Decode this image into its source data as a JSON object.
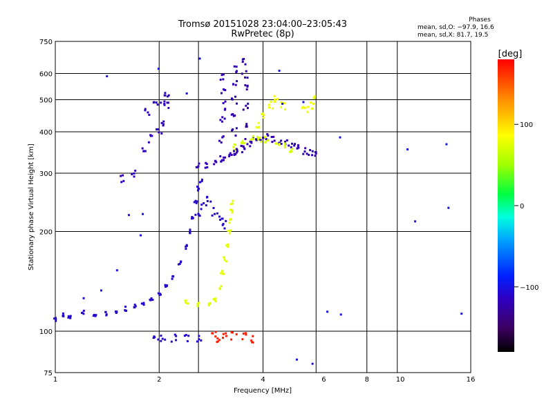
{
  "title": {
    "line1": "Tromsø 20151028 23:04:00–23:05:43",
    "line2": "RwPretec (8p)"
  },
  "phase_box": {
    "heading": "Phases",
    "line_o": "mean, sd,O: −97.9, 16.6",
    "line_x": "mean, sd,X:  81.7, 19.5"
  },
  "colorbar": {
    "unit_label": "[deg]",
    "min": -180,
    "max": 180,
    "ticks": [
      {
        "value": 100,
        "label": "100"
      },
      {
        "value": 0,
        "label": "0"
      },
      {
        "value": -100,
        "label": "−100"
      }
    ]
  },
  "chart_data": {
    "type": "scatter",
    "xlabel": "Frequency [MHz]",
    "ylabel": "Stationary phase Virtual Height [km]",
    "xscale": "log",
    "yscale": "log",
    "xlim": [
      1,
      16
    ],
    "ylim": [
      75,
      750
    ],
    "xticks": [
      {
        "value": 1,
        "label": "1"
      },
      {
        "value": 2,
        "label": "2"
      },
      {
        "value": 4,
        "label": "4"
      },
      {
        "value": 6,
        "label": "6"
      },
      {
        "value": 8,
        "label": "8"
      },
      {
        "value": 10,
        "label": "10"
      },
      {
        "value": 16,
        "label": "16"
      }
    ],
    "xgrid": [
      2,
      2.6,
      4,
      5.7,
      8,
      9.8
    ],
    "yticks": [
      {
        "value": 75,
        "label": "75"
      },
      {
        "value": 100,
        "label": "100"
      },
      {
        "value": 200,
        "label": "200"
      },
      {
        "value": 300,
        "label": "300"
      },
      {
        "value": 400,
        "label": "400"
      },
      {
        "value": 500,
        "label": "500"
      },
      {
        "value": 600,
        "label": "600"
      },
      {
        "value": 750,
        "label": "750"
      }
    ],
    "grid": true,
    "color_by": "phase [deg]",
    "traces": [
      {
        "name": "E-layer O",
        "phase": -110,
        "spread": 0.01,
        "points": [
          [
            1.0,
            108
          ],
          [
            1.05,
            112
          ],
          [
            1.1,
            110
          ],
          [
            1.2,
            114
          ],
          [
            1.3,
            112
          ],
          [
            1.4,
            113
          ],
          [
            1.5,
            115
          ],
          [
            1.6,
            117
          ],
          [
            1.7,
            119
          ],
          [
            1.8,
            121
          ],
          [
            1.9,
            124
          ],
          [
            2.0,
            129
          ],
          [
            2.1,
            136
          ],
          [
            2.2,
            145
          ],
          [
            2.3,
            160
          ],
          [
            2.4,
            180
          ],
          [
            2.45,
            200
          ],
          [
            2.5,
            220
          ],
          [
            2.55,
            245
          ],
          [
            2.6,
            270
          ],
          [
            2.65,
            285
          ]
        ]
      },
      {
        "name": "E-layer X",
        "phase": 75,
        "spread": 0.01,
        "points": [
          [
            2.4,
            122
          ],
          [
            2.6,
            120
          ],
          [
            2.8,
            121
          ],
          [
            2.9,
            125
          ],
          [
            3.0,
            135
          ],
          [
            3.05,
            150
          ],
          [
            3.1,
            165
          ],
          [
            3.15,
            180
          ],
          [
            3.2,
            200
          ],
          [
            3.22,
            215
          ],
          [
            3.24,
            230
          ],
          [
            3.25,
            245
          ]
        ]
      },
      {
        "name": "F-layer O",
        "phase": -120,
        "spread": 0.015,
        "points": [
          [
            2.6,
            315
          ],
          [
            2.75,
            318
          ],
          [
            2.9,
            325
          ],
          [
            3.05,
            330
          ],
          [
            3.2,
            338
          ],
          [
            3.35,
            346
          ],
          [
            3.5,
            355
          ],
          [
            3.65,
            368
          ],
          [
            3.8,
            380
          ],
          [
            3.95,
            385
          ],
          [
            4.1,
            385
          ],
          [
            4.3,
            380
          ],
          [
            4.5,
            375
          ],
          [
            4.7,
            370
          ],
          [
            4.9,
            365
          ],
          [
            5.1,
            360
          ],
          [
            5.3,
            350
          ],
          [
            5.5,
            345
          ],
          [
            5.7,
            345
          ]
        ]
      },
      {
        "name": "F-layer X",
        "phase": 70,
        "spread": 0.015,
        "points": [
          [
            3.3,
            360
          ],
          [
            3.5,
            370
          ],
          [
            3.7,
            380
          ],
          [
            3.9,
            380
          ],
          [
            4.1,
            380
          ],
          [
            4.4,
            370
          ],
          [
            4.6,
            362
          ],
          [
            4.8,
            355
          ]
        ]
      },
      {
        "name": "Sporadic O low",
        "phase": -115,
        "spread": 0.02,
        "points": [
          [
            1.55,
            290
          ],
          [
            1.7,
            300
          ],
          [
            1.8,
            360
          ],
          [
            1.9,
            380
          ],
          [
            2.0,
            400
          ],
          [
            2.05,
            430
          ],
          [
            2.1,
            480
          ]
        ]
      },
      {
        "name": "Sporadic O high",
        "phase": -115,
        "spread": 0.02,
        "points": [
          [
            1.85,
            460
          ],
          [
            1.95,
            480
          ],
          [
            2.05,
            500
          ],
          [
            2.1,
            520
          ]
        ]
      },
      {
        "name": "F column A",
        "phase": -120,
        "spread": 0.02,
        "points": [
          [
            3.05,
            330
          ],
          [
            3.05,
            380
          ],
          [
            3.05,
            430
          ],
          [
            3.05,
            480
          ],
          [
            3.05,
            530
          ],
          [
            3.05,
            580
          ]
        ]
      },
      {
        "name": "F column B",
        "phase": -120,
        "spread": 0.02,
        "points": [
          [
            3.3,
            350
          ],
          [
            3.3,
            400
          ],
          [
            3.3,
            450
          ],
          [
            3.3,
            500
          ],
          [
            3.3,
            560
          ],
          [
            3.3,
            620
          ]
        ]
      },
      {
        "name": "F column C",
        "phase": -125,
        "spread": 0.02,
        "points": [
          [
            3.55,
            370
          ],
          [
            3.55,
            420
          ],
          [
            3.55,
            480
          ],
          [
            3.55,
            540
          ],
          [
            3.55,
            600
          ],
          [
            3.55,
            650
          ]
        ]
      },
      {
        "name": "F yellow band",
        "phase": 80,
        "spread": 0.02,
        "points": [
          [
            3.9,
            420
          ],
          [
            4.0,
            450
          ],
          [
            4.2,
            480
          ],
          [
            4.4,
            500
          ],
          [
            4.6,
            480
          ],
          [
            5.3,
            470
          ],
          [
            5.5,
            480
          ],
          [
            5.6,
            500
          ]
        ]
      },
      {
        "name": "E high cluster",
        "phase": -110,
        "spread": 0.02,
        "points": [
          [
            2.6,
            230
          ],
          [
            2.7,
            240
          ],
          [
            2.8,
            250
          ],
          [
            2.9,
            230
          ],
          [
            3.0,
            220
          ],
          [
            3.1,
            210
          ]
        ]
      },
      {
        "name": "Low echoes",
        "phase": -110,
        "spread": 0.02,
        "points": [
          [
            1.95,
            95
          ],
          [
            2.05,
            96
          ],
          [
            2.2,
            95
          ],
          [
            2.4,
            96
          ],
          [
            2.6,
            95
          ]
        ]
      },
      {
        "name": "Low echoes X",
        "phase": 170,
        "spread": 0.02,
        "points": [
          [
            2.9,
            97
          ],
          [
            3.0,
            95
          ],
          [
            3.1,
            98
          ],
          [
            3.3,
            97
          ],
          [
            3.5,
            96
          ],
          [
            3.7,
            95
          ]
        ]
      },
      {
        "name": "Scattered",
        "phase": -100,
        "spread": 0.05,
        "points": [
          [
            1.2,
            130
          ],
          [
            1.3,
            140
          ],
          [
            1.5,
            150
          ],
          [
            1.6,
            210
          ],
          [
            1.7,
            200
          ],
          [
            1.8,
            230
          ],
          [
            4.5,
            480
          ],
          [
            5.0,
            470
          ],
          [
            6.2,
            120
          ],
          [
            6.8,
            110
          ],
          [
            7.0,
            370
          ],
          [
            10.8,
            330
          ],
          [
            13.0,
            360
          ],
          [
            14.4,
            225
          ],
          [
            14.4,
            120
          ],
          [
            11.0,
            210
          ],
          [
            1.4,
            600
          ],
          [
            2.0,
            620
          ],
          [
            2.5,
            560
          ],
          [
            2.7,
            620
          ],
          [
            4.6,
            600
          ],
          [
            5.0,
            80
          ],
          [
            5.5,
            80
          ]
        ]
      }
    ]
  }
}
